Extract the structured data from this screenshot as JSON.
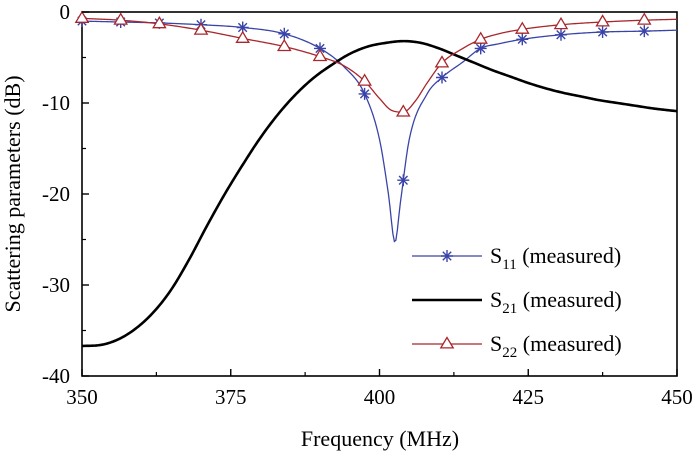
{
  "chart_data": {
    "type": "line",
    "title": "",
    "xlabel": "Frequency (MHz)",
    "ylabel": "Scattering parameters (dB)",
    "xlim": [
      350,
      450
    ],
    "ylim": [
      -40,
      0
    ],
    "xticks": [
      350,
      375,
      400,
      425,
      450
    ],
    "yticks": [
      0,
      -10,
      -20,
      -30,
      -40
    ],
    "grid": false,
    "legend_position": "bottom-right",
    "series": [
      {
        "name": "S11 (measured)",
        "label_main": "S",
        "label_sub": "11",
        "label_rest": " (measured)",
        "color": "#3a44a8",
        "marker": "asterisk",
        "x": [
          350,
          356.5,
          363,
          370,
          377,
          384,
          390,
          394,
          397.5,
          400,
          401.5,
          402.6,
          403.5,
          405,
          408,
          410.5,
          414,
          417,
          420,
          424,
          430.5,
          437.5,
          444.5,
          450
        ],
        "y": [
          -1.0,
          -1.1,
          -1.2,
          -1.4,
          -1.7,
          -2.4,
          -4.0,
          -6.0,
          -9.0,
          -14.0,
          -20.0,
          -25.3,
          -21.0,
          -14.0,
          -9.0,
          -7.2,
          -5.5,
          -4.0,
          -3.5,
          -3.0,
          -2.5,
          -2.2,
          -2.1,
          -2.0
        ],
        "markers_x": [
          350,
          356.5,
          363,
          370,
          377,
          384,
          390,
          397.5,
          404,
          410.5,
          417,
          424,
          430.5,
          437.5,
          444.5
        ]
      },
      {
        "name": "S21 (measured)",
        "label_main": "S",
        "label_sub": "21",
        "label_rest": " (measured)",
        "color": "#000000",
        "marker": "none",
        "x": [
          350,
          353,
          356,
          359,
          362,
          365,
          368,
          371,
          374,
          377,
          380,
          383,
          386,
          389,
          392,
          395,
          398,
          401,
          404,
          407,
          410,
          413,
          416,
          419,
          422,
          425,
          428,
          431,
          434,
          437,
          440,
          443,
          446,
          450
        ],
        "y": [
          -36.7,
          -36.6,
          -36.0,
          -34.8,
          -33.0,
          -30.5,
          -27.2,
          -23.5,
          -20.0,
          -16.8,
          -13.8,
          -11.2,
          -9.0,
          -7.2,
          -5.8,
          -4.6,
          -3.8,
          -3.4,
          -3.2,
          -3.4,
          -4.0,
          -4.8,
          -5.6,
          -6.4,
          -7.1,
          -7.8,
          -8.4,
          -8.9,
          -9.3,
          -9.7,
          -10.0,
          -10.3,
          -10.6,
          -10.9
        ]
      },
      {
        "name": "S22 (measured)",
        "label_main": "S",
        "label_sub": "22",
        "label_rest": " (measured)",
        "color": "#a8272c",
        "marker": "triangle",
        "x": [
          350,
          356.5,
          363,
          370,
          377,
          384,
          390,
          394,
          397.5,
          400,
          402,
          404,
          406,
          408,
          410.5,
          414,
          417,
          420,
          424,
          430.5,
          437.5,
          444.5,
          450
        ],
        "y": [
          -0.7,
          -0.9,
          -1.3,
          -2.0,
          -2.9,
          -3.8,
          -4.9,
          -5.9,
          -7.6,
          -9.5,
          -10.8,
          -11.0,
          -9.8,
          -7.8,
          -5.6,
          -4.0,
          -3.0,
          -2.4,
          -1.9,
          -1.4,
          -1.1,
          -0.9,
          -0.8
        ],
        "markers_x": [
          350,
          356.5,
          363,
          370,
          377,
          384,
          390,
          397.5,
          404,
          410.5,
          417,
          424,
          430.5,
          437.5,
          444.5
        ]
      }
    ]
  }
}
